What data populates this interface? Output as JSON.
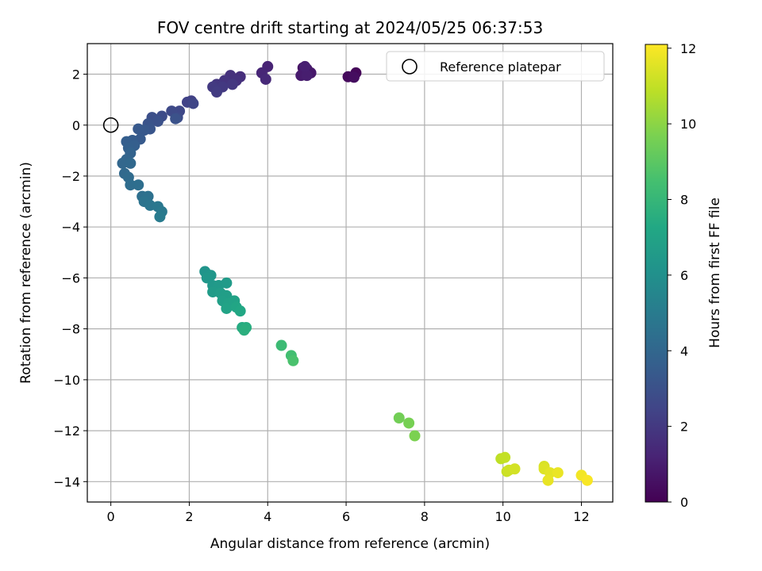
{
  "chart_data": {
    "type": "scatter",
    "title": "FOV centre drift starting at 2024/05/25 06:37:53",
    "xlabel": "Angular distance from reference (arcmin)",
    "ylabel": "Rotation from reference (arcmin)",
    "xlim": [
      -0.6,
      12.8
    ],
    "ylim": [
      -14.8,
      3.2
    ],
    "xticks": [
      0,
      2,
      4,
      6,
      8,
      10,
      12
    ],
    "yticks": [
      2,
      0,
      -2,
      -4,
      -6,
      -8,
      -10,
      -12,
      -14
    ],
    "grid": true,
    "legend": {
      "placement": "top-right",
      "entries": [
        {
          "label": "Reference platepar",
          "marker": "open-circle"
        }
      ]
    },
    "reference_point": {
      "x": 0,
      "y": 0
    },
    "colorbar": {
      "label": "Hours from first FF file",
      "range": [
        0,
        12.1
      ],
      "ticks": [
        0,
        2,
        4,
        6,
        8,
        10,
        12
      ],
      "colormap": "viridis"
    },
    "points": [
      {
        "x": 6.25,
        "y": 2.05,
        "c": 0.2
      },
      {
        "x": 6.05,
        "y": 1.9,
        "c": 0.3
      },
      {
        "x": 6.2,
        "y": 1.88,
        "c": 0.4
      },
      {
        "x": 4.9,
        "y": 2.25,
        "c": 0.6
      },
      {
        "x": 5.0,
        "y": 2.2,
        "c": 0.7
      },
      {
        "x": 5.1,
        "y": 2.05,
        "c": 0.8
      },
      {
        "x": 4.85,
        "y": 1.95,
        "c": 0.9
      },
      {
        "x": 5.0,
        "y": 1.95,
        "c": 1.0
      },
      {
        "x": 4.95,
        "y": 2.3,
        "c": 1.05
      },
      {
        "x": 4.0,
        "y": 2.3,
        "c": 1.2
      },
      {
        "x": 3.85,
        "y": 2.05,
        "c": 1.3
      },
      {
        "x": 3.95,
        "y": 1.8,
        "c": 1.4
      },
      {
        "x": 3.3,
        "y": 1.9,
        "c": 1.6
      },
      {
        "x": 3.05,
        "y": 1.95,
        "c": 1.7
      },
      {
        "x": 3.2,
        "y": 1.75,
        "c": 1.75
      },
      {
        "x": 2.9,
        "y": 1.75,
        "c": 1.8
      },
      {
        "x": 2.7,
        "y": 1.6,
        "c": 1.9
      },
      {
        "x": 3.1,
        "y": 1.6,
        "c": 1.95
      },
      {
        "x": 2.85,
        "y": 1.5,
        "c": 2.0
      },
      {
        "x": 2.6,
        "y": 1.5,
        "c": 2.05
      },
      {
        "x": 2.7,
        "y": 1.3,
        "c": 2.1
      },
      {
        "x": 2.05,
        "y": 0.95,
        "c": 2.3
      },
      {
        "x": 1.95,
        "y": 0.9,
        "c": 2.4
      },
      {
        "x": 2.1,
        "y": 0.85,
        "c": 2.5
      },
      {
        "x": 1.75,
        "y": 0.55,
        "c": 2.6
      },
      {
        "x": 1.55,
        "y": 0.55,
        "c": 2.7
      },
      {
        "x": 1.7,
        "y": 0.3,
        "c": 2.75
      },
      {
        "x": 1.3,
        "y": 0.35,
        "c": 2.8
      },
      {
        "x": 1.05,
        "y": 0.3,
        "c": 2.9
      },
      {
        "x": 1.2,
        "y": 0.15,
        "c": 3.0
      },
      {
        "x": 1.65,
        "y": 0.25,
        "c": 3.05
      },
      {
        "x": 0.95,
        "y": 0.05,
        "c": 3.1
      },
      {
        "x": 1.0,
        "y": -0.15,
        "c": 3.2
      },
      {
        "x": 0.85,
        "y": -0.2,
        "c": 3.3
      },
      {
        "x": 0.7,
        "y": -0.15,
        "c": 3.35
      },
      {
        "x": 0.75,
        "y": -0.55,
        "c": 3.4
      },
      {
        "x": 0.55,
        "y": -0.6,
        "c": 3.5
      },
      {
        "x": 0.4,
        "y": -0.65,
        "c": 3.6
      },
      {
        "x": 0.6,
        "y": -0.8,
        "c": 3.65
      },
      {
        "x": 0.45,
        "y": -0.9,
        "c": 3.7
      },
      {
        "x": 0.5,
        "y": -1.1,
        "c": 3.8
      },
      {
        "x": 0.4,
        "y": -1.35,
        "c": 3.9
      },
      {
        "x": 0.3,
        "y": -1.5,
        "c": 4.0
      },
      {
        "x": 0.5,
        "y": -1.5,
        "c": 4.05
      },
      {
        "x": 0.35,
        "y": -1.9,
        "c": 4.1
      },
      {
        "x": 0.45,
        "y": -2.05,
        "c": 4.2
      },
      {
        "x": 0.5,
        "y": -2.35,
        "c": 4.3
      },
      {
        "x": 0.7,
        "y": -2.35,
        "c": 4.35
      },
      {
        "x": 0.8,
        "y": -2.8,
        "c": 4.4
      },
      {
        "x": 0.95,
        "y": -2.8,
        "c": 4.5
      },
      {
        "x": 0.85,
        "y": -3.0,
        "c": 4.6
      },
      {
        "x": 1.0,
        "y": -3.15,
        "c": 4.7
      },
      {
        "x": 1.2,
        "y": -3.2,
        "c": 4.8
      },
      {
        "x": 1.3,
        "y": -3.4,
        "c": 4.9
      },
      {
        "x": 1.25,
        "y": -3.6,
        "c": 5.0
      },
      {
        "x": 2.4,
        "y": -5.75,
        "c": 6.2
      },
      {
        "x": 2.55,
        "y": -5.9,
        "c": 6.3
      },
      {
        "x": 2.45,
        "y": -6.0,
        "c": 6.35
      },
      {
        "x": 2.6,
        "y": -6.3,
        "c": 6.4
      },
      {
        "x": 2.75,
        "y": -6.3,
        "c": 6.5
      },
      {
        "x": 2.95,
        "y": -6.2,
        "c": 6.55
      },
      {
        "x": 2.6,
        "y": -6.55,
        "c": 6.6
      },
      {
        "x": 2.8,
        "y": -6.6,
        "c": 6.7
      },
      {
        "x": 2.95,
        "y": -6.7,
        "c": 6.75
      },
      {
        "x": 2.85,
        "y": -6.9,
        "c": 6.8
      },
      {
        "x": 3.0,
        "y": -7.0,
        "c": 6.9
      },
      {
        "x": 3.15,
        "y": -6.9,
        "c": 6.95
      },
      {
        "x": 2.95,
        "y": -7.2,
        "c": 7.0
      },
      {
        "x": 3.2,
        "y": -7.15,
        "c": 7.1
      },
      {
        "x": 3.3,
        "y": -7.3,
        "c": 7.2
      },
      {
        "x": 3.35,
        "y": -7.95,
        "c": 7.4
      },
      {
        "x": 3.45,
        "y": -7.95,
        "c": 7.5
      },
      {
        "x": 3.4,
        "y": -8.05,
        "c": 7.6
      },
      {
        "x": 4.35,
        "y": -8.65,
        "c": 8.2
      },
      {
        "x": 4.6,
        "y": -9.05,
        "c": 8.4
      },
      {
        "x": 4.65,
        "y": -9.25,
        "c": 8.6
      },
      {
        "x": 7.35,
        "y": -11.5,
        "c": 9.5
      },
      {
        "x": 7.6,
        "y": -11.7,
        "c": 9.6
      },
      {
        "x": 7.75,
        "y": -12.2,
        "c": 9.7
      },
      {
        "x": 9.95,
        "y": -13.1,
        "c": 10.9
      },
      {
        "x": 10.05,
        "y": -13.05,
        "c": 11.0
      },
      {
        "x": 10.1,
        "y": -13.6,
        "c": 11.1
      },
      {
        "x": 10.15,
        "y": -13.55,
        "c": 11.2
      },
      {
        "x": 10.3,
        "y": -13.5,
        "c": 11.3
      },
      {
        "x": 11.05,
        "y": -13.4,
        "c": 11.4
      },
      {
        "x": 11.05,
        "y": -13.5,
        "c": 11.5
      },
      {
        "x": 11.2,
        "y": -13.65,
        "c": 11.6
      },
      {
        "x": 11.15,
        "y": -13.95,
        "c": 11.7
      },
      {
        "x": 11.4,
        "y": -13.65,
        "c": 11.75
      },
      {
        "x": 12.0,
        "y": -13.75,
        "c": 11.9
      },
      {
        "x": 12.15,
        "y": -13.95,
        "c": 12.0
      }
    ]
  }
}
